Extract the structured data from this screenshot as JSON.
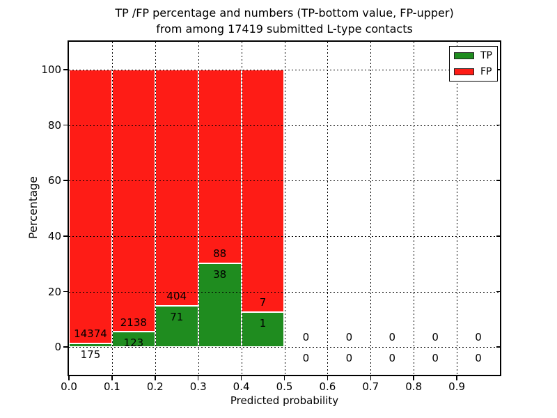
{
  "title": {
    "line1": "TP /FP percentage and numbers (TP-bottom value, FP-upper)",
    "line2": "from among 17419 submitted L-type contacts"
  },
  "axes": {
    "xlabel": "Predicted probability",
    "ylabel": "Percentage"
  },
  "legend": {
    "items": [
      {
        "label": "TP",
        "color": "#1f8c1f"
      },
      {
        "label": "FP",
        "color": "#fe1c16"
      }
    ]
  },
  "colors": {
    "tp_green": "#1f8c1f",
    "fp_red": "#fe1c16",
    "bar_edge": "#ffffff",
    "axis": "#000000"
  },
  "chart_data": {
    "type": "bar",
    "stacked": true,
    "title": "TP /FP percentage and numbers (TP-bottom value, FP-upper) from among 17419 submitted L-type contacts",
    "xlabel": "Predicted probability",
    "ylabel": "Percentage",
    "total_submitted_contacts": 17419,
    "xlim": [
      0.0,
      1.0
    ],
    "ylim": [
      -10,
      110
    ],
    "grid": "dotted",
    "legend_position": "upper right",
    "bin_width": 0.1,
    "bin_starts": [
      0.0,
      0.1,
      0.2,
      0.3,
      0.4,
      0.5,
      0.6,
      0.7,
      0.8,
      0.9
    ],
    "xticks": {
      "values": [
        0.0,
        0.1,
        0.2,
        0.3,
        0.4,
        0.5,
        0.6,
        0.7,
        0.8,
        0.9
      ],
      "labels": [
        "0.0",
        "0.1",
        "0.2",
        "0.3",
        "0.4",
        "0.5",
        "0.6",
        "0.7",
        "0.8",
        "0.9"
      ]
    },
    "yticks": {
      "values": [
        0,
        20,
        40,
        60,
        80,
        100
      ],
      "labels": [
        "0",
        "20",
        "40",
        "60",
        "80",
        "100"
      ]
    },
    "series": [
      {
        "name": "TP",
        "color": "#1f8c1f",
        "counts": [
          175,
          123,
          71,
          38,
          1,
          0,
          0,
          0,
          0,
          0
        ],
        "pct": [
          1.2,
          5.44,
          14.95,
          30.16,
          12.5,
          0,
          0,
          0,
          0,
          0
        ]
      },
      {
        "name": "FP",
        "color": "#fe1c16",
        "counts": [
          14374,
          2138,
          404,
          88,
          7,
          0,
          0,
          0,
          0,
          0
        ],
        "pct": [
          98.8,
          94.56,
          85.05,
          69.84,
          87.5,
          0,
          0,
          0,
          0,
          0
        ]
      }
    ]
  }
}
